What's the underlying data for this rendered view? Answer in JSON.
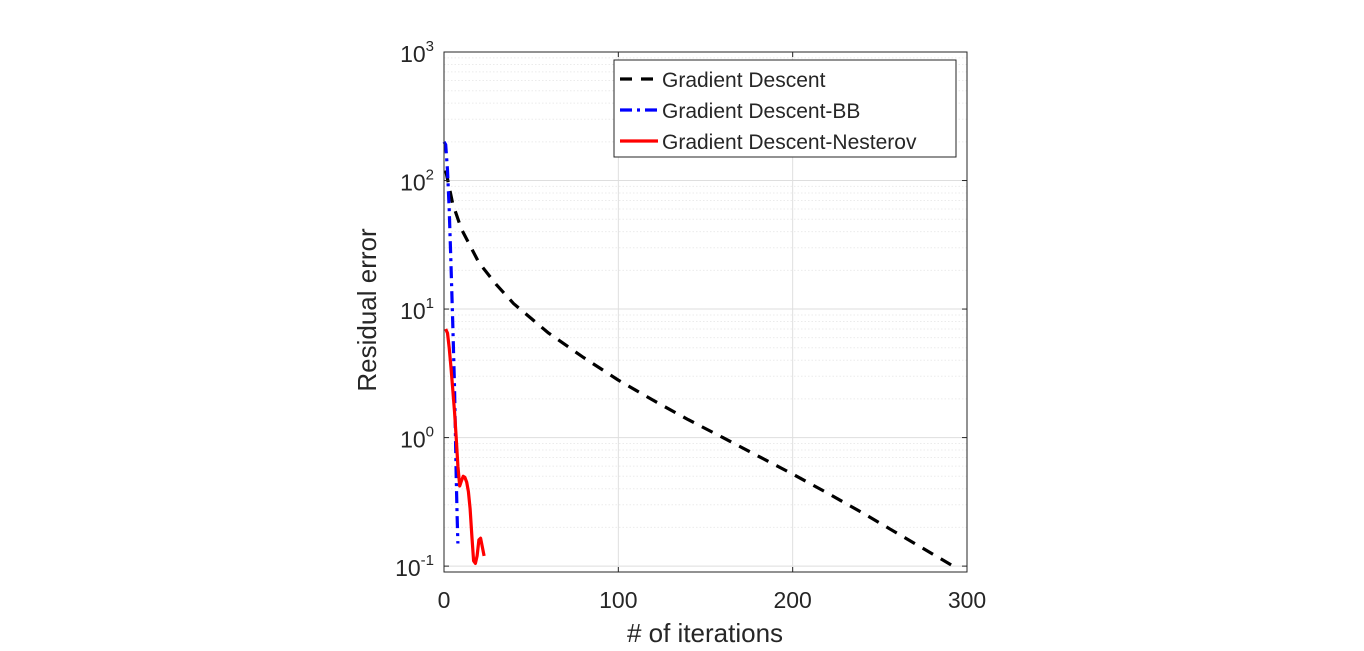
{
  "chart_data": {
    "type": "line",
    "xlabel": "# of iterations",
    "ylabel": "Residual error",
    "xlim": [
      0,
      300
    ],
    "ylim": [
      0.09,
      1000
    ],
    "yscale": "log",
    "grid": true,
    "minor_grid": true,
    "legend_position": "top-right",
    "x_ticks": [
      0,
      100,
      200,
      300
    ],
    "y_ticks": [
      {
        "value": 0.1,
        "base": "10",
        "exp": "-1"
      },
      {
        "value": 1,
        "base": "10",
        "exp": "0"
      },
      {
        "value": 10,
        "base": "10",
        "exp": "1"
      },
      {
        "value": 100,
        "base": "10",
        "exp": "2"
      },
      {
        "value": 1000,
        "base": "10",
        "exp": "3"
      }
    ],
    "series": [
      {
        "name": "Gradient Descent",
        "color": "#000000",
        "style": "dashed",
        "x": [
          1,
          5,
          10,
          20,
          30,
          40,
          60,
          80,
          100,
          120,
          140,
          160,
          180,
          200,
          220,
          240,
          260,
          280,
          292
        ],
        "y": [
          120,
          66,
          42,
          23,
          15.5,
          11,
          6.5,
          4.2,
          2.8,
          1.95,
          1.38,
          1.0,
          0.72,
          0.52,
          0.37,
          0.26,
          0.18,
          0.125,
          0.1
        ]
      },
      {
        "name": "Gradient Descent-BB",
        "color": "#0000ff",
        "style": "dashdot",
        "x": [
          0,
          1,
          2,
          3,
          4,
          5,
          6,
          6.5,
          7,
          7.5,
          8
        ],
        "y": [
          200,
          190,
          120,
          60,
          22,
          8,
          2.5,
          1.2,
          0.5,
          0.25,
          0.15
        ]
      },
      {
        "name": "Gradient Descent-Nesterov",
        "color": "#ff0000",
        "style": "solid",
        "x": [
          1,
          2,
          3,
          4,
          5,
          6,
          7,
          8,
          9,
          10,
          11,
          12,
          13,
          14,
          15,
          16,
          17,
          18,
          19,
          20,
          21,
          22,
          23
        ],
        "y": [
          7,
          6.5,
          5,
          3.5,
          2.4,
          1.6,
          1.0,
          0.6,
          0.42,
          0.46,
          0.5,
          0.49,
          0.45,
          0.38,
          0.28,
          0.17,
          0.11,
          0.105,
          0.12,
          0.16,
          0.165,
          0.14,
          0.12
        ]
      }
    ]
  }
}
